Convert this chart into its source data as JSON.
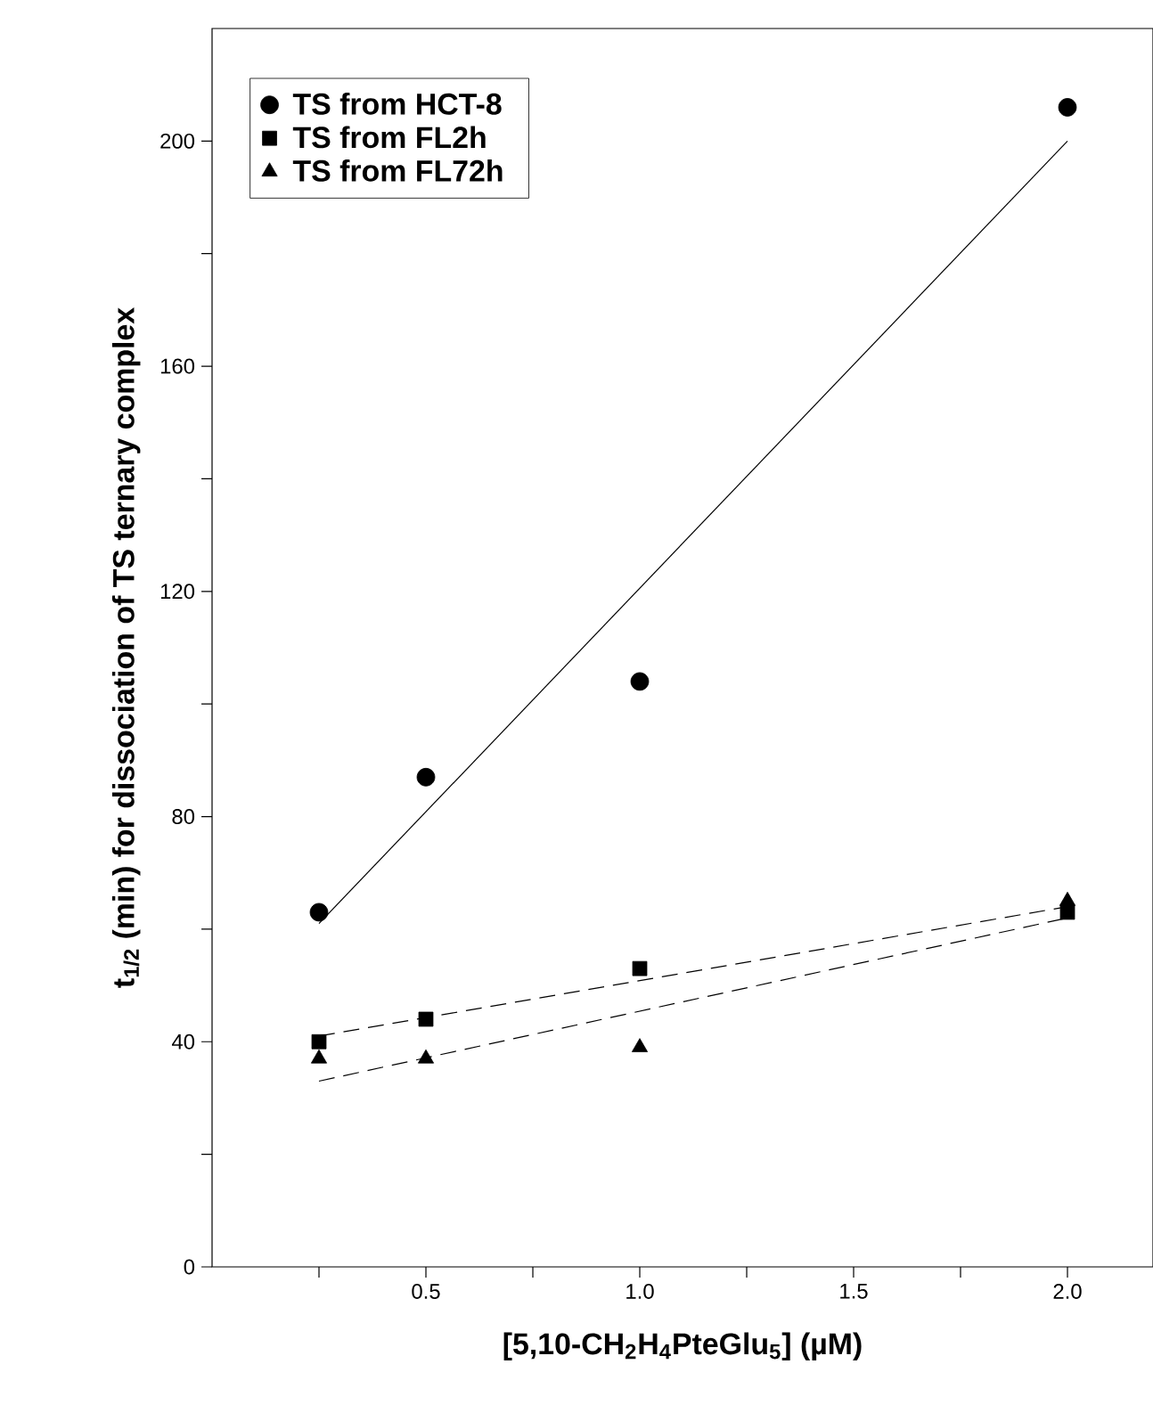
{
  "chart_data": {
    "type": "scatter",
    "xlabel": "[5,10-CH$_{2}$H$_{4}$PteGlu$_{5}$] (µM)",
    "ylabel": "t$_{1/2}$ (min) for dissociation of TS ternary complex",
    "xlim": [
      0,
      2.2
    ],
    "ylim": [
      0,
      220
    ],
    "xticks": [
      {
        "value": 0.25,
        "label": null
      },
      0.5,
      {
        "value": 0.75,
        "label": null
      },
      {
        "value": 1,
        "label": "1.0"
      },
      {
        "value": 1.25,
        "label": null
      },
      1.5,
      {
        "value": 1.75,
        "label": null
      },
      {
        "value": 2,
        "label": "2.0"
      }
    ],
    "yticks": [
      0,
      {
        "value": 20,
        "label": null
      },
      40,
      {
        "value": 60,
        "label": null
      },
      80,
      {
        "value": 100,
        "label": null
      },
      120,
      {
        "value": 140,
        "label": null
      },
      160,
      {
        "value": 180,
        "label": null
      },
      200
    ],
    "legend": "top left",
    "grid": false,
    "series": [
      {
        "name": "TS from HCT-8",
        "marker": "circle",
        "color": "#000000",
        "x": [
          0.25,
          0.5,
          1.0,
          2.0
        ],
        "values": [
          63,
          87,
          104,
          206
        ]
      },
      {
        "name": "TS from FL2h",
        "marker": "square",
        "color": "#000000",
        "x": [
          0.25,
          0.5,
          1.0,
          2.0
        ],
        "values": [
          40,
          44,
          53,
          63
        ]
      },
      {
        "name": "TS from FL72h",
        "marker": "triangle",
        "color": "#000000",
        "x": [
          0.25,
          0.5,
          1.0,
          2.0
        ],
        "values": [
          37,
          37,
          39,
          65
        ]
      },
      {
        "type": "line",
        "line_style": "solid",
        "color": "#000000",
        "x": [
          0.25,
          2.0
        ],
        "values": [
          61,
          200
        ]
      },
      {
        "type": "line",
        "line_style": "dashed",
        "color": "#000000",
        "x": [
          0.25,
          2.0
        ],
        "values": [
          41,
          64
        ]
      },
      {
        "type": "line",
        "line_style": "dashed",
        "color": "#000000",
        "x": [
          0.25,
          2.0
        ],
        "values": [
          33,
          62
        ]
      }
    ]
  }
}
